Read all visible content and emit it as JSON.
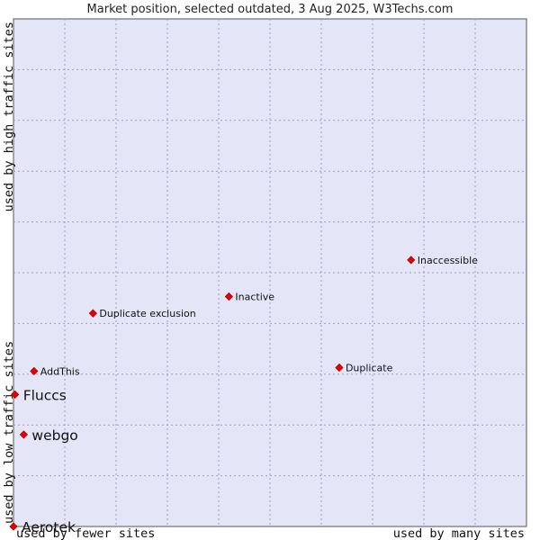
{
  "chart_data": {
    "type": "scatter",
    "title": "Market position, selected outdated, 3 Aug 2025, W3Techs.com",
    "xlabel_left": "used by fewer sites",
    "xlabel_right": "used by many sites",
    "ylabel_bottom": "used by low traffic sites",
    "ylabel_top": "used by high traffic sites",
    "xlim": [
      0,
      100
    ],
    "ylim": [
      0,
      100
    ],
    "grid": true,
    "point_color": "#e60000",
    "background_color": "#e4e6f8",
    "points": [
      {
        "label": "Inaccessible",
        "x": 77.5,
        "y": 52.5,
        "size": "small"
      },
      {
        "label": "Inactive",
        "x": 42.0,
        "y": 45.3,
        "size": "small"
      },
      {
        "label": "Duplicate exclusion",
        "x": 15.5,
        "y": 42.0,
        "size": "small"
      },
      {
        "label": "Duplicate",
        "x": 63.5,
        "y": 31.3,
        "size": "small"
      },
      {
        "label": "AddThis",
        "x": 4.0,
        "y": 30.6,
        "size": "small"
      },
      {
        "label": "Fluccs",
        "x": 0.3,
        "y": 26.0,
        "size": "big"
      },
      {
        "label": "webgo",
        "x": 2.0,
        "y": 18.1,
        "size": "big"
      },
      {
        "label": "Aerotek",
        "x": 0.0,
        "y": 0.0,
        "size": "big"
      }
    ]
  }
}
